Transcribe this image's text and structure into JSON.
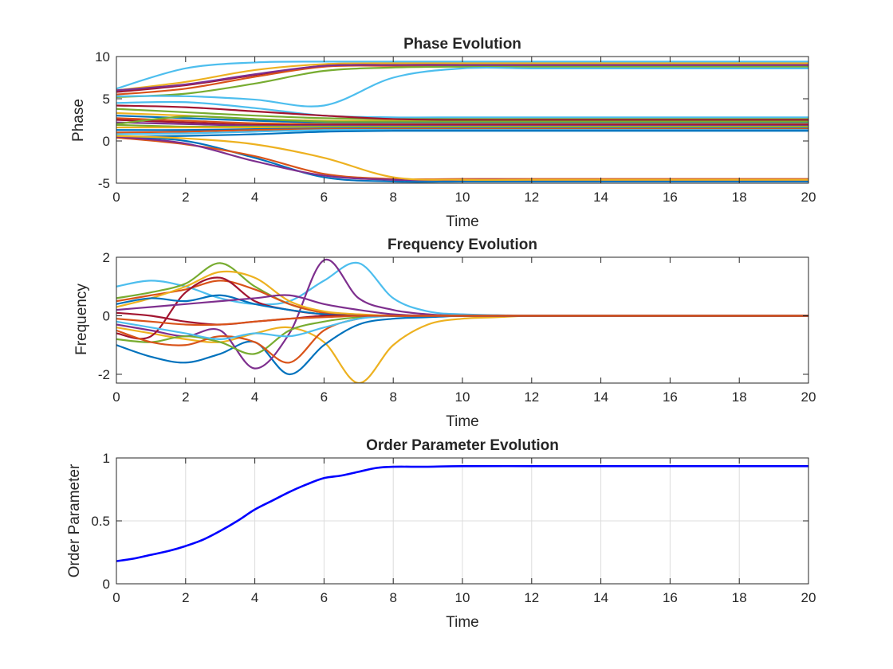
{
  "figure": {
    "background": "#ffffff",
    "axis_color": "#262626",
    "grid_color": "#dcdcdc"
  },
  "chart_data": [
    {
      "type": "line",
      "title": "Phase Evolution",
      "xlabel": "Time",
      "ylabel": "Phase",
      "xlim": [
        0,
        20
      ],
      "ylim": [
        -5,
        10
      ],
      "xticks": [
        0,
        2,
        4,
        6,
        8,
        10,
        12,
        14,
        16,
        18,
        20
      ],
      "yticks": [
        -5,
        0,
        5,
        10
      ],
      "grid": false,
      "legend": "none",
      "series_count": 50,
      "color_cycle": [
        "#0072BD",
        "#D95319",
        "#EDB120",
        "#7E2F8E",
        "#77AC30",
        "#4DBEEE",
        "#A2142F"
      ],
      "sample_x": [
        0,
        2,
        4,
        6,
        8,
        10,
        12,
        14,
        16,
        18,
        20
      ],
      "series": [
        {
          "color": "#4DBEEE",
          "values": [
            6.2,
            8.6,
            9.3,
            9.4,
            9.4,
            9.4,
            9.4,
            9.4,
            9.4,
            9.4,
            9.4
          ]
        },
        {
          "color": "#EDB120",
          "values": [
            6.0,
            7.0,
            8.4,
            9.1,
            9.2,
            9.2,
            9.2,
            9.2,
            9.2,
            9.2,
            9.2
          ]
        },
        {
          "color": "#A2142F",
          "values": [
            5.8,
            6.6,
            7.8,
            8.9,
            9.0,
            9.0,
            9.0,
            9.0,
            9.0,
            9.0,
            9.0
          ]
        },
        {
          "color": "#D95319",
          "values": [
            5.5,
            6.2,
            7.6,
            8.8,
            8.9,
            8.9,
            8.9,
            8.9,
            8.9,
            8.9,
            8.9
          ]
        },
        {
          "color": "#77AC30",
          "values": [
            5.2,
            5.6,
            6.8,
            8.3,
            8.7,
            8.8,
            8.8,
            8.8,
            8.8,
            8.8,
            8.8
          ]
        },
        {
          "color": "#4DBEEE",
          "values": [
            5.3,
            5.3,
            4.9,
            4.2,
            7.5,
            8.6,
            8.6,
            8.6,
            8.6,
            8.6,
            8.6
          ]
        },
        {
          "color": "#7E2F8E",
          "values": [
            6.0,
            6.7,
            7.9,
            8.9,
            9.0,
            9.0,
            9.0,
            9.0,
            9.0,
            9.0,
            9.0
          ]
        },
        {
          "color": "#4DBEEE",
          "values": [
            4.5,
            4.6,
            3.9,
            3.0,
            2.8,
            2.8,
            2.8,
            2.8,
            2.8,
            2.8,
            2.8
          ]
        },
        {
          "color": "#77AC30",
          "values": [
            3.8,
            3.4,
            3.0,
            2.7,
            2.6,
            2.6,
            2.6,
            2.6,
            2.6,
            2.6,
            2.6
          ]
        },
        {
          "color": "#EDB120",
          "values": [
            3.3,
            3.0,
            2.6,
            2.4,
            2.4,
            2.4,
            2.4,
            2.4,
            2.4,
            2.4,
            2.4
          ]
        },
        {
          "color": "#0072BD",
          "values": [
            3.0,
            2.7,
            2.4,
            2.2,
            2.2,
            2.2,
            2.2,
            2.2,
            2.2,
            2.2,
            2.2
          ]
        },
        {
          "color": "#D95319",
          "values": [
            2.7,
            2.4,
            2.1,
            2.0,
            2.0,
            2.0,
            2.0,
            2.0,
            2.0,
            2.0,
            2.0
          ]
        },
        {
          "color": "#A2142F",
          "values": [
            2.5,
            2.2,
            1.9,
            1.9,
            1.9,
            1.9,
            1.9,
            1.9,
            1.9,
            1.9,
            1.9
          ]
        },
        {
          "color": "#7E2F8E",
          "values": [
            2.2,
            2.0,
            1.8,
            1.8,
            1.8,
            1.8,
            1.8,
            1.8,
            1.8,
            1.8,
            1.8
          ]
        },
        {
          "color": "#77AC30",
          "values": [
            1.9,
            1.7,
            1.7,
            1.7,
            1.7,
            1.7,
            1.7,
            1.7,
            1.7,
            1.7,
            1.7
          ]
        },
        {
          "color": "#EDB120",
          "values": [
            1.6,
            1.6,
            1.6,
            1.6,
            1.6,
            1.6,
            1.6,
            1.6,
            1.6,
            1.6,
            1.6
          ]
        },
        {
          "color": "#0072BD",
          "values": [
            1.3,
            1.3,
            1.4,
            1.5,
            1.5,
            1.5,
            1.5,
            1.5,
            1.5,
            1.5,
            1.5
          ]
        },
        {
          "color": "#D95319",
          "values": [
            1.0,
            1.1,
            1.3,
            1.4,
            1.4,
            1.4,
            1.4,
            1.4,
            1.4,
            1.4,
            1.4
          ]
        },
        {
          "color": "#4DBEEE",
          "values": [
            0.8,
            0.9,
            1.1,
            1.3,
            1.3,
            1.3,
            1.3,
            1.3,
            1.3,
            1.3,
            1.3
          ]
        },
        {
          "color": "#0072BD",
          "values": [
            0.5,
            0.6,
            0.8,
            1.1,
            1.2,
            1.2,
            1.2,
            1.2,
            1.2,
            1.2,
            1.2
          ]
        },
        {
          "color": "#0072BD",
          "values": [
            0.5,
            0.0,
            -2.0,
            -4.3,
            -4.8,
            -4.8,
            -4.8,
            -4.8,
            -4.8,
            -4.8,
            -4.8
          ]
        },
        {
          "color": "#D95319",
          "values": [
            0.4,
            -0.4,
            -1.8,
            -3.9,
            -4.5,
            -4.5,
            -4.5,
            -4.5,
            -4.5,
            -4.5,
            -4.5
          ]
        },
        {
          "color": "#7E2F8E",
          "values": [
            0.5,
            -0.3,
            -2.4,
            -4.1,
            -4.6,
            -4.6,
            -4.6,
            -4.6,
            -4.6,
            -4.6,
            -4.6
          ]
        },
        {
          "color": "#EDB120",
          "values": [
            0.6,
            0.3,
            -0.4,
            -2.0,
            -4.3,
            -4.6,
            -4.6,
            -4.6,
            -4.6,
            -4.6,
            -4.6
          ]
        },
        {
          "color": "#A2142F",
          "values": [
            4.2,
            4.0,
            3.5,
            3.0,
            2.6,
            2.5,
            2.5,
            2.5,
            2.5,
            2.5,
            2.5
          ]
        },
        {
          "color": "#77AC30",
          "values": [
            2.0,
            2.9,
            2.6,
            2.3,
            2.3,
            2.3,
            2.3,
            2.3,
            2.3,
            2.3,
            2.3
          ]
        }
      ]
    },
    {
      "type": "line",
      "title": "Frequency Evolution",
      "xlabel": "Time",
      "ylabel": "Frequency",
      "xlim": [
        0,
        20
      ],
      "ylim": [
        -2.3,
        2
      ],
      "xticks": [
        0,
        2,
        4,
        6,
        8,
        10,
        12,
        14,
        16,
        18,
        20
      ],
      "yticks": [
        -2,
        0,
        2
      ],
      "grid": false,
      "legend": "none",
      "sample_x": [
        0,
        1,
        2,
        3,
        4,
        5,
        6,
        7,
        8,
        9,
        10,
        11,
        12,
        14,
        16,
        18,
        20
      ],
      "series": [
        {
          "color": "#4DBEEE",
          "values": [
            1.0,
            1.2,
            1.0,
            0.6,
            0.4,
            0.5,
            1.2,
            1.8,
            0.6,
            0.15,
            0.05,
            0.02,
            0.0,
            0.0,
            0.0,
            0.0,
            0.0
          ]
        },
        {
          "color": "#EDB120",
          "values": [
            -0.4,
            -0.6,
            -0.8,
            -0.9,
            -0.6,
            -0.4,
            -0.9,
            -2.3,
            -1.0,
            -0.3,
            -0.1,
            -0.05,
            0.0,
            0.0,
            0.0,
            0.0,
            0.0
          ]
        },
        {
          "color": "#0072BD",
          "values": [
            -1.0,
            -1.4,
            -1.6,
            -1.3,
            -0.9,
            -2.0,
            -1.0,
            -0.3,
            -0.1,
            -0.05,
            0.0,
            0.0,
            0.0,
            0.0,
            0.0,
            0.0,
            0.0
          ]
        },
        {
          "color": "#7E2F8E",
          "values": [
            -0.3,
            -0.5,
            -0.7,
            -0.5,
            -1.8,
            -0.6,
            1.9,
            0.6,
            0.2,
            0.05,
            0.0,
            0.0,
            0.0,
            0.0,
            0.0,
            0.0,
            0.0
          ]
        },
        {
          "color": "#77AC30",
          "values": [
            0.6,
            0.8,
            1.1,
            1.8,
            1.0,
            0.4,
            0.1,
            0.0,
            0.0,
            0.0,
            0.0,
            0.0,
            0.0,
            0.0,
            0.0,
            0.0,
            0.0
          ]
        },
        {
          "color": "#D95319",
          "values": [
            0.5,
            0.7,
            0.9,
            1.2,
            0.9,
            0.4,
            0.1,
            0.0,
            0.0,
            0.0,
            0.0,
            0.0,
            0.0,
            0.0,
            0.0,
            0.0,
            0.0
          ]
        },
        {
          "color": "#EDB120",
          "values": [
            0.3,
            0.6,
            1.0,
            1.5,
            1.3,
            0.5,
            0.15,
            0.05,
            0.0,
            0.0,
            0.0,
            0.0,
            0.0,
            0.0,
            0.0,
            0.0,
            0.0
          ]
        },
        {
          "color": "#A2142F",
          "values": [
            -0.6,
            -0.7,
            0.8,
            1.3,
            0.5,
            0.2,
            0.05,
            0.0,
            0.0,
            0.0,
            0.0,
            0.0,
            0.0,
            0.0,
            0.0,
            0.0,
            0.0
          ]
        },
        {
          "color": "#77AC30",
          "values": [
            -0.8,
            -0.9,
            -0.7,
            -0.9,
            -1.3,
            -0.5,
            -0.2,
            -0.05,
            0.0,
            0.0,
            0.0,
            0.0,
            0.0,
            0.0,
            0.0,
            0.0,
            0.0
          ]
        },
        {
          "color": "#D95319",
          "values": [
            -0.5,
            -0.9,
            -1.0,
            -0.7,
            -0.9,
            -1.6,
            -0.5,
            -0.1,
            0.0,
            0.0,
            0.0,
            0.0,
            0.0,
            0.0,
            0.0,
            0.0,
            0.0
          ]
        },
        {
          "color": "#0072BD",
          "values": [
            0.4,
            0.6,
            0.5,
            0.7,
            0.4,
            0.2,
            0.05,
            0.0,
            0.0,
            0.0,
            0.0,
            0.0,
            0.0,
            0.0,
            0.0,
            0.0,
            0.0
          ]
        },
        {
          "color": "#4DBEEE",
          "values": [
            -0.2,
            -0.4,
            -0.6,
            -0.8,
            -0.6,
            -0.7,
            -0.4,
            -0.1,
            0.0,
            0.0,
            0.0,
            0.0,
            0.0,
            0.0,
            0.0,
            0.0,
            0.0
          ]
        },
        {
          "color": "#7E2F8E",
          "values": [
            0.2,
            0.3,
            0.4,
            0.5,
            0.6,
            0.7,
            0.4,
            0.2,
            0.05,
            0.0,
            0.0,
            0.0,
            0.0,
            0.0,
            0.0,
            0.0,
            0.0
          ]
        },
        {
          "color": "#A2142F",
          "values": [
            0.1,
            0.0,
            -0.2,
            -0.3,
            -0.2,
            -0.1,
            0.0,
            0.0,
            0.0,
            0.0,
            0.0,
            0.0,
            0.0,
            0.0,
            0.0,
            0.0,
            0.0
          ]
        },
        {
          "color": "#D95319",
          "values": [
            -0.1,
            -0.2,
            -0.3,
            -0.3,
            -0.2,
            -0.1,
            -0.05,
            0.0,
            0.0,
            0.0,
            0.0,
            0.0,
            0.0,
            0.0,
            0.0,
            0.0,
            0.0
          ]
        }
      ]
    },
    {
      "type": "line",
      "title": "Order Parameter Evolution",
      "xlabel": "Time",
      "ylabel": "Order Parameter",
      "xlim": [
        0,
        20
      ],
      "ylim": [
        0,
        1
      ],
      "xticks": [
        0,
        2,
        4,
        6,
        8,
        10,
        12,
        14,
        16,
        18,
        20
      ],
      "yticks": [
        0,
        0.5,
        1
      ],
      "ytick_labels": [
        "0",
        "0.5",
        "1"
      ],
      "grid": true,
      "legend": "none",
      "x": [
        0,
        0.5,
        1,
        1.5,
        2,
        2.5,
        3,
        3.5,
        4,
        4.5,
        5,
        5.5,
        6,
        6.5,
        7,
        7.5,
        8,
        9,
        10,
        12,
        14,
        16,
        18,
        20
      ],
      "series": [
        {
          "color": "#0000FF",
          "values": [
            0.18,
            0.2,
            0.23,
            0.26,
            0.3,
            0.35,
            0.42,
            0.5,
            0.59,
            0.66,
            0.73,
            0.79,
            0.84,
            0.86,
            0.89,
            0.92,
            0.93,
            0.93,
            0.935,
            0.935,
            0.935,
            0.935,
            0.935,
            0.935
          ]
        }
      ]
    }
  ]
}
